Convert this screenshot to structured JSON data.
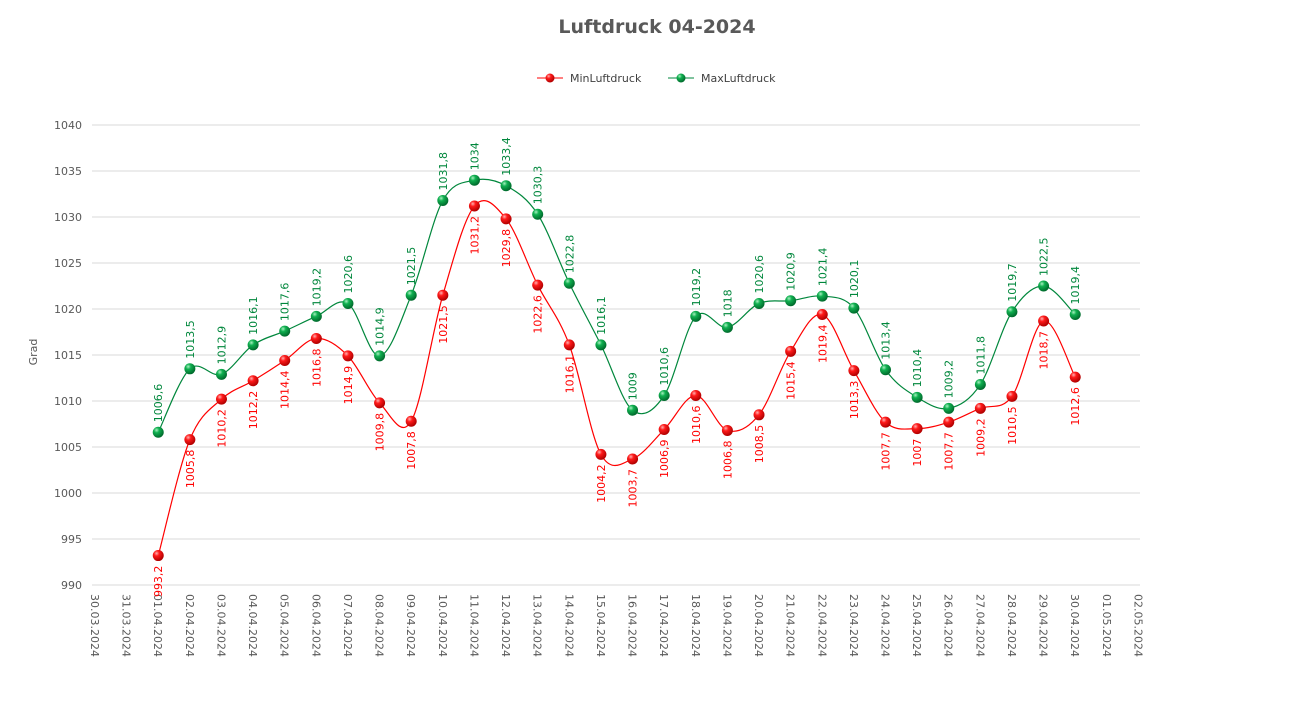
{
  "chart_data": {
    "type": "line",
    "title": "Luftdruck 04-2024",
    "xlabel": "",
    "ylabel": "Grad",
    "ylim": [
      990,
      1040
    ],
    "yticks": [
      990,
      995,
      1000,
      1005,
      1010,
      1015,
      1020,
      1025,
      1030,
      1035,
      1040
    ],
    "grid": true,
    "legend_position": "top",
    "categories": [
      "30.03.2024",
      "31.03.2024",
      "01.04.2024",
      "02.04.2024",
      "03.04.2024",
      "04.04.2024",
      "05.04.2024",
      "06.04.2024",
      "07.04.2024",
      "08.04.2024",
      "09.04.2024",
      "10.04.2024",
      "11.04.2024",
      "12.04.2024",
      "13.04.2024",
      "14.04.2024",
      "15.04.2024",
      "16.04.2024",
      "17.04.2024",
      "18.04.2024",
      "19.04.2024",
      "20.04.2024",
      "21.04.2024",
      "22.04.2024",
      "23.04.2024",
      "24.04.2024",
      "25.04.2024",
      "26.04.2024",
      "27.04.2024",
      "28.04.2024",
      "29.04.2024",
      "30.04.2024",
      "01.05.2024",
      "02.05.2024"
    ],
    "series": [
      {
        "name": "MinLuftdruck",
        "color": "#ff0000",
        "label_position": "below",
        "values": [
          null,
          null,
          993.2,
          1005.8,
          1010.2,
          1012.2,
          1014.4,
          1016.8,
          1014.9,
          1009.8,
          1007.8,
          1021.5,
          1031.2,
          1029.8,
          1022.6,
          1016.1,
          1004.2,
          1003.7,
          1006.9,
          1010.6,
          1006.8,
          1008.5,
          1015.4,
          1019.4,
          1013.3,
          1007.7,
          1007,
          1007.7,
          1009.2,
          1010.5,
          1018.7,
          1012.6,
          null,
          null
        ]
      },
      {
        "name": "MaxLuftdruck",
        "color": "#00873c",
        "label_position": "above",
        "values": [
          null,
          null,
          1006.6,
          1013.5,
          1012.9,
          1016.1,
          1017.6,
          1019.2,
          1020.6,
          1014.9,
          1021.5,
          1031.8,
          1034,
          1033.4,
          1030.3,
          1022.8,
          1016.1,
          1009,
          1010.6,
          1019.2,
          1018,
          1020.6,
          1020.9,
          1021.4,
          1020.1,
          1013.4,
          1010.4,
          1009.2,
          1011.8,
          1019.7,
          1022.5,
          1019.4,
          null,
          null
        ]
      }
    ]
  }
}
